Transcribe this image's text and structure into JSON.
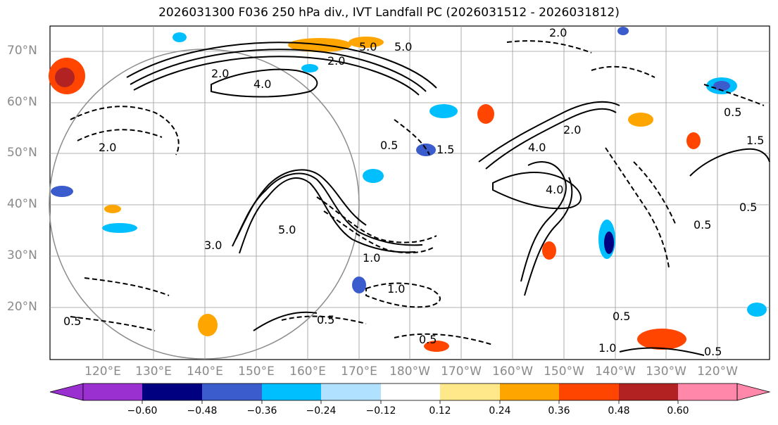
{
  "title": "2026031300 F036 250 hPa div., IVT Landfall PC (2026031512 - 2026031812)",
  "map": {
    "lat_labels": [
      "70°N",
      "60°N",
      "50°N",
      "40°N",
      "30°N",
      "20°N"
    ],
    "lon_labels": [
      "120°E",
      "130°E",
      "140°E",
      "150°E",
      "160°E",
      "170°E",
      "180°W",
      "170°W",
      "160°W",
      "150°W",
      "140°W",
      "130°W",
      "120°W"
    ],
    "contour_labels": [
      "5.0",
      "2.0",
      "2.0",
      "4.0",
      "5.0",
      "2.0",
      "0.5",
      "1.5",
      "2.0",
      "0.5",
      "1.5",
      "0.5",
      "5.0",
      "3.0",
      "1.0",
      "1.0",
      "0.5",
      "0.5",
      "0.5",
      "0.5",
      "4.0",
      "2.0",
      "4.0",
      "0.5",
      "1.0",
      "0.5"
    ],
    "land_color": "#ffffff",
    "contour_color": "#000000",
    "grid_color": "#9a9a9a"
  },
  "colorbar": {
    "ticks": [
      "−0.60",
      "−0.48",
      "−0.36",
      "−0.24",
      "−0.12",
      "0.12",
      "0.24",
      "0.36",
      "0.48",
      "0.60"
    ],
    "colors": [
      "#9b30d0",
      "#000080",
      "#3a5ccc",
      "#00bfff",
      "#b0e2ff",
      "#ffffff",
      "#ffe88a",
      "#ffa500",
      "#ff4500",
      "#b22222",
      "#ff88aa"
    ]
  }
}
